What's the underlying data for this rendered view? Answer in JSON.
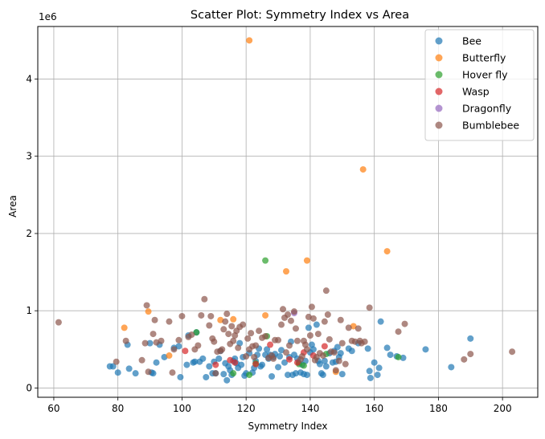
{
  "chart_data": {
    "type": "scatter",
    "title": "Scatter Plot: Symmetry Index vs Area",
    "xlabel": "Symmetry Index",
    "ylabel": "Area",
    "y_multiplier_label": "1e6",
    "xlim": [
      55,
      211
    ],
    "ylim": [
      -0.12,
      4.68
    ],
    "xticks": [
      60,
      80,
      100,
      120,
      140,
      160,
      180,
      200
    ],
    "yticks": [
      0,
      1,
      2,
      3,
      4
    ],
    "grid": true,
    "legend_position": "upper-right",
    "series": [
      {
        "name": "Bee",
        "color": "#1f77b4",
        "points": [
          [
            77.5,
            0.28
          ],
          [
            78.5,
            0.28
          ],
          [
            80,
            0.2
          ],
          [
            83,
            0.56
          ],
          [
            83.5,
            0.25
          ],
          [
            85.5,
            0.19
          ],
          [
            90,
            0.58
          ],
          [
            90.5,
            0.2
          ],
          [
            91,
            0.19
          ],
          [
            92,
            0.33
          ],
          [
            93,
            0.56
          ],
          [
            94.5,
            0.4
          ],
          [
            97.5,
            0.52
          ],
          [
            99,
            0.54
          ],
          [
            99.5,
            0.14
          ],
          [
            101.5,
            0.3
          ],
          [
            102,
            0.68
          ],
          [
            103.5,
            0.33
          ],
          [
            104,
            0.34
          ],
          [
            104.5,
            0.72
          ],
          [
            105.5,
            0.34
          ],
          [
            106.5,
            0.38
          ],
          [
            107.5,
            0.14
          ],
          [
            108.5,
            0.28
          ],
          [
            109.5,
            0.19
          ],
          [
            110,
            0.34
          ],
          [
            110.5,
            0.19
          ],
          [
            111.5,
            0.38
          ],
          [
            112,
            0.48
          ],
          [
            113,
            0.18
          ],
          [
            113.5,
            0.32
          ],
          [
            114,
            0.1
          ],
          [
            114.5,
            0.28
          ],
          [
            115,
            0.23
          ],
          [
            115.5,
            0.17
          ],
          [
            116,
            0.35
          ],
          [
            116.5,
            0.38
          ],
          [
            117,
            0.32
          ],
          [
            117.5,
            0.26
          ],
          [
            118,
            0.58
          ],
          [
            118.5,
            0.3
          ],
          [
            119,
            0.4
          ],
          [
            119.5,
            0.16
          ],
          [
            120,
            0.19
          ],
          [
            121,
            0.45
          ],
          [
            122,
            0.2
          ],
          [
            122.5,
            0.26
          ],
          [
            123,
            0.35
          ],
          [
            123.5,
            0.43
          ],
          [
            124,
            0.51
          ],
          [
            124.5,
            0.28
          ],
          [
            125,
            0.3
          ],
          [
            126,
            0.43
          ],
          [
            126.5,
            0.5
          ],
          [
            127,
            0.38
          ],
          [
            127.5,
            0.43
          ],
          [
            128,
            0.15
          ],
          [
            128.5,
            0.4
          ],
          [
            129,
            0.44
          ],
          [
            130,
            0.27
          ],
          [
            130.5,
            0.41
          ],
          [
            131,
            0.49
          ],
          [
            132,
            0.33
          ],
          [
            133,
            0.17
          ],
          [
            133.5,
            0.4
          ],
          [
            134,
            0.6
          ],
          [
            134.5,
            0.17
          ],
          [
            135,
            0.43
          ],
          [
            135.5,
            0.19
          ],
          [
            136,
            0.38
          ],
          [
            136.5,
            0.33
          ],
          [
            137,
            0.2
          ],
          [
            137.5,
            0.3
          ],
          [
            138,
            0.18
          ],
          [
            138.5,
            0.35
          ],
          [
            139,
            0.17
          ],
          [
            139.5,
            0.78
          ],
          [
            140,
            0.46
          ],
          [
            140.5,
            0.56
          ],
          [
            141,
            0.5
          ],
          [
            142,
            0.82
          ],
          [
            142.5,
            0.35
          ],
          [
            143,
            0.31
          ],
          [
            143.5,
            0.19
          ],
          [
            144,
            0.17
          ],
          [
            144.5,
            0.35
          ],
          [
            145,
            0.28
          ],
          [
            146,
            0.45
          ],
          [
            147,
            0.33
          ],
          [
            147.5,
            0.48
          ],
          [
            148,
            0.34
          ],
          [
            148.5,
            0.53
          ],
          [
            149,
            0.4
          ],
          [
            149.5,
            0.45
          ],
          [
            150,
            0.18
          ],
          [
            152,
            0.51
          ],
          [
            153,
            0.48
          ],
          [
            155,
            0.58
          ],
          [
            158,
            0.51
          ],
          [
            158.5,
            0.22
          ],
          [
            158.8,
            0.13
          ],
          [
            160,
            0.33
          ],
          [
            161,
            0.17
          ],
          [
            161.5,
            0.26
          ],
          [
            162,
            0.86
          ],
          [
            164,
            0.52
          ],
          [
            165,
            0.43
          ],
          [
            167,
            0.41
          ],
          [
            169,
            0.39
          ],
          [
            176,
            0.5
          ],
          [
            184,
            0.27
          ],
          [
            190,
            0.64
          ]
        ]
      },
      {
        "name": "Butterfly",
        "color": "#ff7f0e",
        "points": [
          [
            82,
            0.78
          ],
          [
            89.5,
            0.99
          ],
          [
            96,
            0.42
          ],
          [
            112,
            0.88
          ],
          [
            116,
            0.89
          ],
          [
            121,
            4.5
          ],
          [
            126,
            0.94
          ],
          [
            132.5,
            1.51
          ],
          [
            139,
            1.65
          ],
          [
            148,
            0.21
          ],
          [
            153.5,
            0.8
          ],
          [
            156.5,
            2.83
          ],
          [
            164,
            1.77
          ]
        ]
      },
      {
        "name": "Hover fly",
        "color": "#2ca02c",
        "points": [
          [
            104.5,
            0.72
          ],
          [
            116,
            0.19
          ],
          [
            121,
            0.17
          ],
          [
            123,
            0.32
          ],
          [
            126,
            1.65
          ],
          [
            126.5,
            0.67
          ],
          [
            136.5,
            0.31
          ],
          [
            138,
            0.29
          ],
          [
            145,
            0.44
          ],
          [
            167.5,
            0.4
          ]
        ]
      },
      {
        "name": "Wasp",
        "color": "#d62728",
        "points": [
          [
            101,
            0.48
          ],
          [
            110.5,
            0.3
          ],
          [
            115,
            0.36
          ],
          [
            116.5,
            0.33
          ],
          [
            123,
            0.31
          ],
          [
            127.5,
            0.56
          ],
          [
            133.5,
            0.37
          ],
          [
            136,
            0.33
          ],
          [
            138,
            0.46
          ],
          [
            141,
            0.42
          ],
          [
            144.5,
            0.54
          ]
        ]
      },
      {
        "name": "Dragonfly",
        "color": "#9467bd",
        "points": [
          [
            135,
            0.97
          ]
        ]
      },
      {
        "name": "Bumblebee",
        "color": "#8c564b",
        "points": [
          [
            61.5,
            0.85
          ],
          [
            79.5,
            0.34
          ],
          [
            82.5,
            0.61
          ],
          [
            87.5,
            0.36
          ],
          [
            88.5,
            0.58
          ],
          [
            89,
            1.07
          ],
          [
            89.5,
            0.21
          ],
          [
            91,
            0.7
          ],
          [
            91.5,
            0.88
          ],
          [
            92,
            0.59
          ],
          [
            93.5,
            0.61
          ],
          [
            96,
            0.86
          ],
          [
            97,
            0.2
          ],
          [
            97.5,
            0.5
          ],
          [
            99,
            0.62
          ],
          [
            100,
            0.93
          ],
          [
            102,
            0.66
          ],
          [
            103,
            0.69
          ],
          [
            104,
            0.5
          ],
          [
            105,
            0.55
          ],
          [
            106,
            0.94
          ],
          [
            107,
            1.15
          ],
          [
            108.5,
            0.81
          ],
          [
            109,
            0.93
          ],
          [
            109.5,
            0.64
          ],
          [
            110,
            0.6
          ],
          [
            110.5,
            0.19
          ],
          [
            111,
            0.47
          ],
          [
            112,
            0.48
          ],
          [
            112.5,
            0.5
          ],
          [
            113,
            0.76
          ],
          [
            113.5,
            0.86
          ],
          [
            114,
            0.96
          ],
          [
            114.5,
            0.7
          ],
          [
            115,
            0.57
          ],
          [
            115.5,
            0.8
          ],
          [
            116,
            0.61
          ],
          [
            116.5,
            0.68
          ],
          [
            117,
            0.74
          ],
          [
            117.5,
            0.52
          ],
          [
            118,
            0.79
          ],
          [
            119,
            0.82
          ],
          [
            120,
            0.41
          ],
          [
            120.5,
            0.64
          ],
          [
            121,
            0.5
          ],
          [
            121.5,
            0.71
          ],
          [
            122,
            0.54
          ],
          [
            122.5,
            0.4
          ],
          [
            123,
            0.55
          ],
          [
            124,
            0.74
          ],
          [
            125,
            0.65
          ],
          [
            126,
            0.67
          ],
          [
            127,
            0.39
          ],
          [
            128,
            0.42
          ],
          [
            128.5,
            0.38
          ],
          [
            129,
            0.62
          ],
          [
            130,
            0.62
          ],
          [
            131,
            0.82
          ],
          [
            131.5,
            1.02
          ],
          [
            132,
            0.91
          ],
          [
            132.5,
            0.46
          ],
          [
            133,
            0.95
          ],
          [
            133.5,
            0.55
          ],
          [
            134,
            0.87
          ],
          [
            135,
            0.99
          ],
          [
            135.5,
            0.77
          ],
          [
            136,
            0.61
          ],
          [
            137,
            0.37
          ],
          [
            137.5,
            0.41
          ],
          [
            138,
            0.61
          ],
          [
            138.5,
            0.56
          ],
          [
            139,
            0.5
          ],
          [
            139.5,
            0.92
          ],
          [
            140,
            0.68
          ],
          [
            140.5,
            1.05
          ],
          [
            141,
            0.9
          ],
          [
            141.5,
            0.36
          ],
          [
            142,
            0.4
          ],
          [
            142.5,
            0.7
          ],
          [
            143,
            0.45
          ],
          [
            144,
            0.42
          ],
          [
            144.5,
            0.86
          ],
          [
            145,
            1.26
          ],
          [
            145.5,
            0.95
          ],
          [
            146,
            0.63
          ],
          [
            146.5,
            0.47
          ],
          [
            147.5,
            0.46
          ],
          [
            148,
            0.23
          ],
          [
            149,
            0.35
          ],
          [
            149.5,
            0.88
          ],
          [
            150,
            0.58
          ],
          [
            151,
            0.31
          ],
          [
            152,
            0.78
          ],
          [
            153,
            0.61
          ],
          [
            154,
            0.6
          ],
          [
            155,
            0.77
          ],
          [
            155.5,
            0.61
          ],
          [
            156,
            0.58
          ],
          [
            157,
            0.6
          ],
          [
            158.5,
            1.04
          ],
          [
            167.5,
            0.73
          ],
          [
            169.5,
            0.83
          ],
          [
            188,
            0.37
          ],
          [
            190,
            0.44
          ],
          [
            203,
            0.47
          ]
        ]
      }
    ]
  }
}
